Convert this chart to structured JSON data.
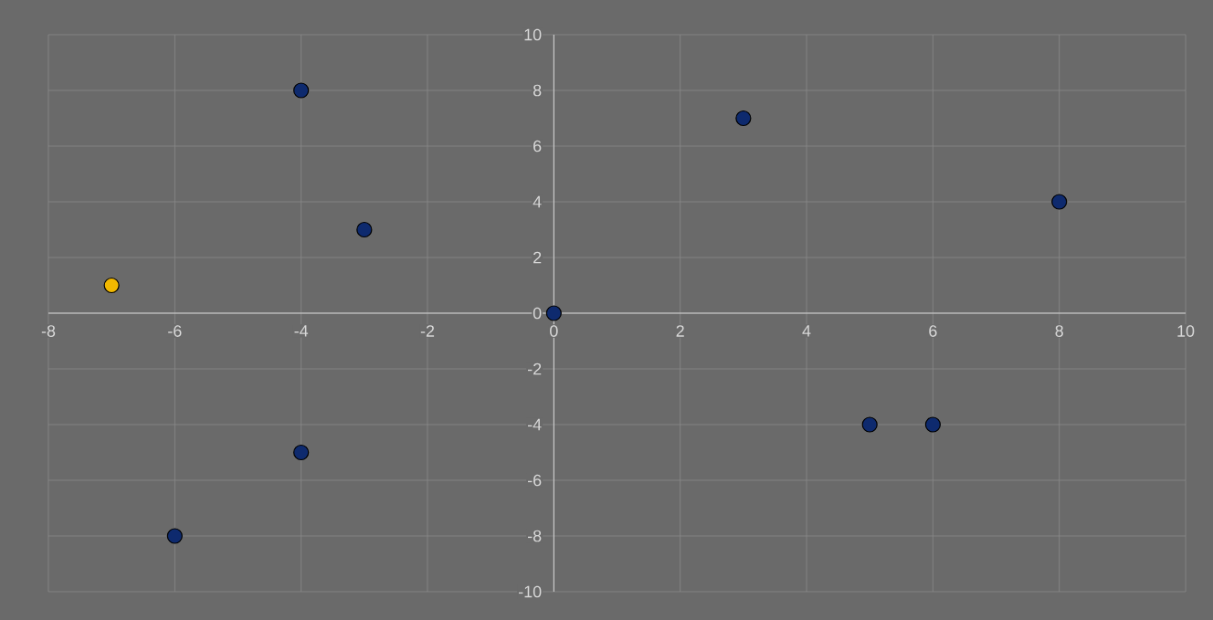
{
  "chart_data": {
    "type": "scatter",
    "x": [
      -7,
      -6,
      -4,
      -4,
      -3,
      0,
      3,
      5,
      6,
      8
    ],
    "values": [
      1,
      -8,
      8,
      -5,
      3,
      0,
      7,
      -4,
      -4,
      4
    ],
    "colors": [
      "#f2b800",
      "#0e2a6e",
      "#0e2a6e",
      "#0e2a6e",
      "#0e2a6e",
      "#0e2a6e",
      "#0e2a6e",
      "#0e2a6e",
      "#0e2a6e",
      "#0e2a6e"
    ],
    "xlim": [
      -8,
      10
    ],
    "ylim": [
      -10,
      10
    ],
    "xticks": [
      -8,
      -6,
      -4,
      -2,
      0,
      2,
      4,
      6,
      8,
      10
    ],
    "yticks": [
      -10,
      -8,
      -6,
      -4,
      -2,
      0,
      2,
      4,
      6,
      8,
      10
    ],
    "grid": true
  }
}
